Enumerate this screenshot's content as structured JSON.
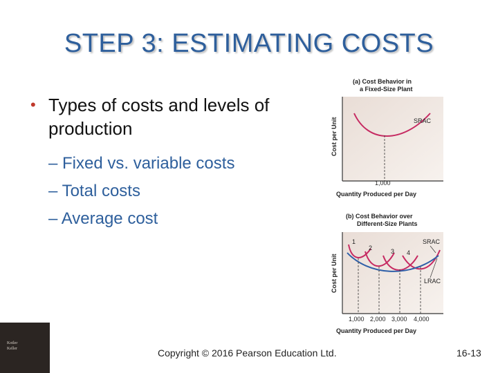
{
  "slide": {
    "title": "STEP 3: ESTIMATING COSTS",
    "bullet": "Types of costs and levels of production",
    "sub_bullets": [
      "– Fixed vs. variable costs",
      "– Total costs",
      "– Average cost"
    ]
  },
  "figure_a": {
    "title_line1": "(a) Cost Behavior in",
    "title_line2": "a Fixed-Size Plant",
    "curve_label": "SRAC",
    "y_label": "Cost per Unit",
    "x_tick": "1,000",
    "x_label": "Quantity Produced per Day"
  },
  "figure_b": {
    "title_line1": "(b) Cost Behavior over",
    "title_line2": "Different-Size Plants",
    "plant_labels": [
      "1",
      "2",
      "3",
      "4"
    ],
    "srac_label": "SRAC",
    "lrac_label": "LRAC",
    "y_label": "Cost per Unit",
    "x_ticks": [
      "1,000",
      "2,000",
      "3,000",
      "4,000"
    ],
    "x_label": "Quantity Produced per Day"
  },
  "footer": {
    "copyright": "Copyright © 2016 Pearson Education Ltd.",
    "page": "16-13",
    "logo_line1": "Kotler",
    "logo_line2": "Keller"
  }
}
